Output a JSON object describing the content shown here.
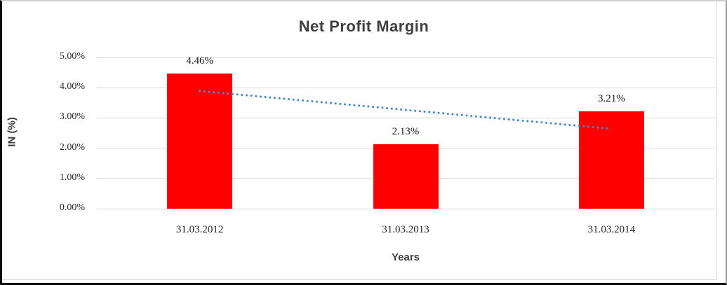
{
  "chart_data": {
    "type": "bar",
    "title": "Net Profit Margin",
    "xlabel": "Years",
    "ylabel": "IN (%)",
    "categories": [
      "31.03.2012",
      "31.03.2013",
      "31.03.2014"
    ],
    "values": [
      4.46,
      2.13,
      3.21
    ],
    "data_labels": [
      "4.46%",
      "2.13%",
      "3.21%"
    ],
    "y_ticks": [
      {
        "value": 0,
        "label": "0.00%"
      },
      {
        "value": 1,
        "label": "1.00%"
      },
      {
        "value": 2,
        "label": "2.00%"
      },
      {
        "value": 3,
        "label": "3.00%"
      },
      {
        "value": 4,
        "label": "4.00%"
      },
      {
        "value": 5,
        "label": "5.00%"
      }
    ],
    "ylim": [
      0,
      5
    ],
    "grid": true,
    "legend": "none",
    "bar_color": "#ff0000",
    "trendline": {
      "type": "linear",
      "style": "dotted",
      "color": "#4a86c8",
      "start_value": 3.89,
      "end_value": 2.64
    }
  }
}
